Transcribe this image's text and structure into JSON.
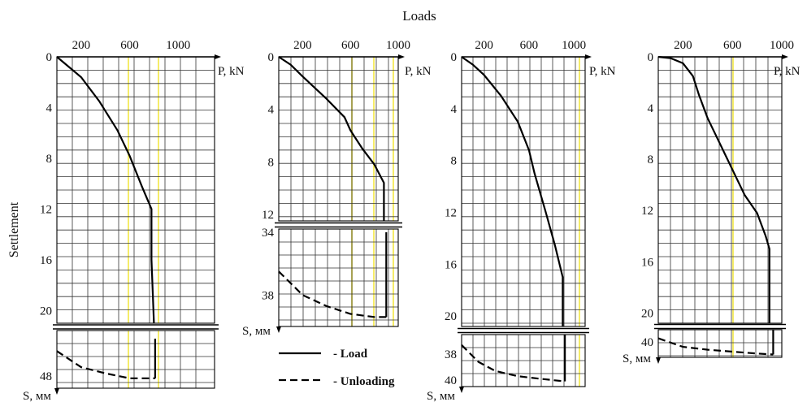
{
  "figure": {
    "title": "Loads",
    "ylabel": "Settlement",
    "legend": [
      {
        "label": "- Load",
        "style": "solid"
      },
      {
        "label": "- Unloading",
        "style": "dashed"
      }
    ]
  },
  "chart_data": [
    {
      "type": "line",
      "xlabel": "P, kN",
      "ylabel": "S, мм",
      "x_ticks": [
        "200",
        "600",
        "1000"
      ],
      "x_tick_values": [
        200,
        600,
        1000
      ],
      "xlim": [
        0,
        1300
      ],
      "upper_ylim": [
        0,
        21
      ],
      "upper_y_ticks": [
        "0",
        "4",
        "8",
        "12",
        "16",
        "20"
      ],
      "upper_y_tick_values": [
        0,
        4,
        8,
        12,
        16,
        20
      ],
      "lower_ylim": [
        45,
        49
      ],
      "lower_y_ticks": [
        "48"
      ],
      "lower_y_tick_values": [
        48
      ],
      "series": [
        {
          "name": "Load",
          "style": "solid",
          "part": "upper",
          "x": [
            0,
            100,
            200,
            350,
            500,
            600,
            700,
            780,
            780,
            800
          ],
          "y": [
            0,
            0.8,
            1.6,
            3.5,
            5.8,
            7.8,
            10.2,
            12.0,
            16.0,
            21
          ]
        },
        {
          "name": "Load",
          "style": "solid",
          "part": "lower",
          "x": [
            810,
            810,
            810
          ],
          "y": [
            45,
            47,
            48.2
          ]
        },
        {
          "name": "Unloading",
          "style": "dashed",
          "part": "lower",
          "x": [
            0,
            200,
            400,
            600,
            810
          ],
          "y": [
            46.0,
            47.3,
            47.8,
            48.2,
            48.2
          ]
        }
      ]
    },
    {
      "type": "line",
      "xlabel": "P, kN",
      "ylabel": "S, мм",
      "x_ticks": [
        "200",
        "600",
        "1000"
      ],
      "x_tick_values": [
        200,
        600,
        1000
      ],
      "xlim": [
        0,
        1000
      ],
      "upper_ylim": [
        0,
        12.5
      ],
      "upper_y_ticks": [
        "0",
        "4",
        "8",
        "12"
      ],
      "upper_y_tick_values": [
        0,
        4,
        8,
        12
      ],
      "lower_ylim": [
        34,
        40
      ],
      "lower_y_ticks": [
        "34",
        "38"
      ],
      "lower_y_tick_values": [
        34,
        38
      ],
      "series": [
        {
          "name": "Load",
          "style": "solid",
          "part": "upper",
          "x": [
            0,
            100,
            200,
            400,
            550,
            600,
            700,
            800,
            880,
            880
          ],
          "y": [
            0,
            0.6,
            1.5,
            3.2,
            4.6,
            5.6,
            7.0,
            8.2,
            9.6,
            12.5
          ]
        },
        {
          "name": "Load",
          "style": "solid",
          "part": "lower",
          "x": [
            900,
            900
          ],
          "y": [
            34,
            39.4
          ]
        },
        {
          "name": "Unloading",
          "style": "dashed",
          "part": "lower",
          "x": [
            0,
            200,
            400,
            600,
            800,
            900
          ],
          "y": [
            36.5,
            38.0,
            38.7,
            39.2,
            39.4,
            39.4
          ]
        }
      ]
    },
    {
      "type": "line",
      "xlabel": "P, kN",
      "ylabel": "S, мм",
      "x_ticks": [
        "200",
        "600",
        "1000"
      ],
      "x_tick_values": [
        200,
        600,
        1000
      ],
      "xlim": [
        0,
        1100
      ],
      "upper_ylim": [
        0,
        20.8
      ],
      "upper_y_ticks": [
        "0",
        "4",
        "8",
        "12",
        "16",
        "20"
      ],
      "upper_y_tick_values": [
        0,
        4,
        8,
        12,
        16,
        20
      ],
      "lower_ylim": [
        36.5,
        40.5
      ],
      "lower_y_ticks": [
        "38",
        "40"
      ],
      "lower_y_tick_values": [
        38,
        40
      ],
      "series": [
        {
          "name": "Load",
          "style": "solid",
          "part": "upper",
          "x": [
            0,
            100,
            200,
            350,
            500,
            600,
            650,
            750,
            830,
            900,
            900
          ],
          "y": [
            0,
            0.6,
            1.4,
            3.0,
            5.0,
            7.2,
            9.0,
            12.0,
            14.5,
            17.0,
            20.8
          ]
        },
        {
          "name": "Load",
          "style": "solid",
          "part": "lower",
          "x": [
            920,
            920
          ],
          "y": [
            36.5,
            40.1
          ]
        },
        {
          "name": "Unloading",
          "style": "dashed",
          "part": "lower",
          "x": [
            0,
            150,
            300,
            500,
            700,
            920
          ],
          "y": [
            37.3,
            38.6,
            39.3,
            39.7,
            39.9,
            40.1
          ]
        }
      ]
    },
    {
      "type": "line",
      "xlabel": "P, kN",
      "ylabel": "S, мм",
      "x_ticks": [
        "200",
        "600",
        "1000"
      ],
      "x_tick_values": [
        200,
        600,
        1000
      ],
      "xlim": [
        0,
        1000
      ],
      "upper_ylim": [
        0,
        20.8
      ],
      "upper_y_ticks": [
        "0",
        "4",
        "8",
        "12",
        "16",
        "20"
      ],
      "upper_y_tick_values": [
        0,
        4,
        8,
        12,
        16,
        20
      ],
      "lower_ylim": [
        38.7,
        41.6
      ],
      "lower_y_ticks": [
        "40"
      ],
      "lower_y_tick_values": [
        40
      ],
      "series": [
        {
          "name": "Load",
          "style": "solid",
          "part": "upper",
          "x": [
            0,
            100,
            200,
            280,
            330,
            400,
            500,
            600,
            700,
            800,
            870,
            900,
            900
          ],
          "y": [
            0,
            0.1,
            0.5,
            1.5,
            3.0,
            4.8,
            6.8,
            8.8,
            10.8,
            12.2,
            14.0,
            15.0,
            20.8
          ]
        },
        {
          "name": "Load",
          "style": "solid",
          "part": "lower",
          "x": [
            930,
            930
          ],
          "y": [
            38.7,
            41.3
          ]
        },
        {
          "name": "Unloading",
          "style": "dashed",
          "part": "lower",
          "x": [
            0,
            200,
            400,
            600,
            800,
            930
          ],
          "y": [
            39.6,
            40.5,
            40.8,
            41.0,
            41.2,
            41.3
          ]
        }
      ]
    }
  ]
}
